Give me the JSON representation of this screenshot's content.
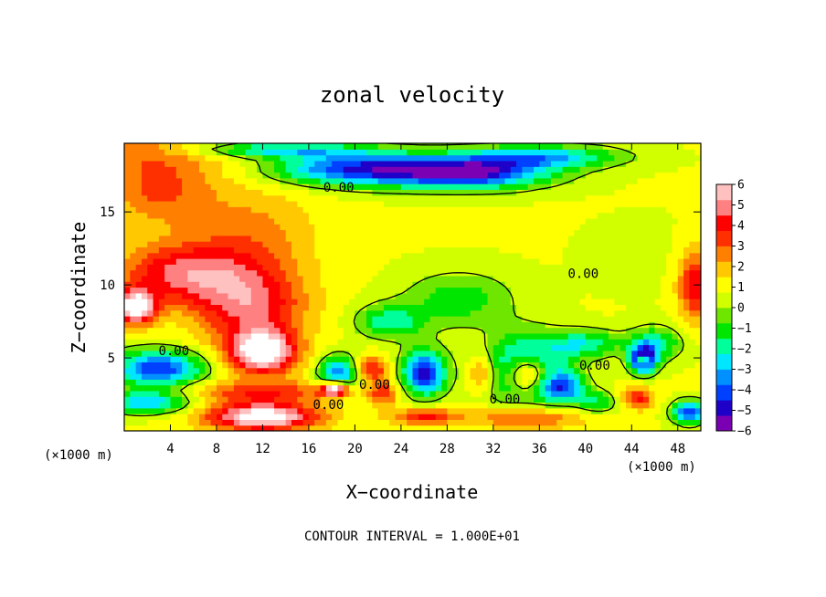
{
  "chart_data": {
    "type": "heatmap",
    "title": "zonal velocity",
    "xlabel": "X−coordinate",
    "ylabel": "Z−coordinate",
    "x_unit_left": "(×1000 m)",
    "x_unit_right": "(×1000 m)",
    "footnote": "CONTOUR INTERVAL = 1.000E+01",
    "xlim": [
      0,
      50
    ],
    "ylim": [
      0,
      19.7
    ],
    "x_ticks": [
      4,
      8,
      12,
      16,
      20,
      24,
      28,
      32,
      36,
      40,
      44,
      48
    ],
    "y_ticks": [
      5,
      10,
      15
    ],
    "colorbar": {
      "range": [
        -6,
        6
      ],
      "ticks": [
        "6",
        "5",
        "4",
        "3",
        "2",
        "1",
        "0",
        "−1",
        "−2",
        "−3",
        "−4",
        "−5",
        "−6"
      ],
      "colors": [
        "#7b00b4",
        "#1e00c8",
        "#0040ff",
        "#0090ff",
        "#00e6ff",
        "#00ff9a",
        "#00e600",
        "#6ee600",
        "#d2ff00",
        "#ffff00",
        "#ffc800",
        "#ff8000",
        "#ff3000",
        "#ff0000",
        "#ff8080",
        "#ffc0c0"
      ]
    },
    "contour_labels": [
      {
        "x": 18.6,
        "z": 16.7,
        "text": "0.00"
      },
      {
        "x": 39.8,
        "z": 10.8,
        "text": "0.00"
      },
      {
        "x": 4.3,
        "z": 5.5,
        "text": "0.00"
      },
      {
        "x": 40.8,
        "z": 4.5,
        "text": "0.00"
      },
      {
        "x": 21.7,
        "z": 3.2,
        "text": "0.00"
      },
      {
        "x": 33.0,
        "z": 2.2,
        "text": "0.00"
      },
      {
        "x": 17.7,
        "z": 1.8,
        "text": "0.00"
      }
    ],
    "field_blobs": [
      {
        "x": 0,
        "z": 19.7,
        "rx": 17,
        "rz": 2.2,
        "v": 2.5
      },
      {
        "x": 20,
        "z": 18.0,
        "rx": 8,
        "rz": 1.2,
        "v": -4.5
      },
      {
        "x": 30,
        "z": 17.7,
        "rx": 7,
        "rz": 1.1,
        "v": -5.0
      },
      {
        "x": 36,
        "z": 18.8,
        "rx": 7,
        "rz": 0.8,
        "v": -3.0
      },
      {
        "x": 13,
        "z": 19.3,
        "rx": 8,
        "rz": 0.6,
        "v": -3.0
      },
      {
        "x": 3,
        "z": 16.5,
        "rx": 5,
        "rz": 2.5,
        "v": 3.0
      },
      {
        "x": 11,
        "z": 13.5,
        "rx": 6,
        "rz": 3.5,
        "v": 2.5
      },
      {
        "x": 5,
        "z": 10.8,
        "rx": 6,
        "rz": 2.2,
        "v": 4.5
      },
      {
        "x": 11,
        "z": 8.5,
        "rx": 5,
        "rz": 2.8,
        "v": 4.5
      },
      {
        "x": 1,
        "z": 8.5,
        "rx": 1.8,
        "rz": 1.2,
        "v": 7.0
      },
      {
        "x": 12,
        "z": 5.4,
        "rx": 3,
        "rz": 1.5,
        "v": 7.0
      },
      {
        "x": 3,
        "z": 4.3,
        "rx": 4,
        "rz": 1.3,
        "v": -4.5
      },
      {
        "x": 2,
        "z": 2.0,
        "rx": 4,
        "rz": 0.8,
        "v": -3.0
      },
      {
        "x": 12,
        "z": 1.0,
        "rx": 5,
        "rz": 1.0,
        "v": 7.0
      },
      {
        "x": 12,
        "z": 2.7,
        "rx": 7,
        "rz": 0.8,
        "v": 3.5
      },
      {
        "x": 18.6,
        "z": 4.0,
        "rx": 1.8,
        "rz": 1.2,
        "v": -3.5
      },
      {
        "x": 18.2,
        "z": 2.9,
        "rx": 1.2,
        "rz": 0.5,
        "v": 7.0
      },
      {
        "x": 21.5,
        "z": 4.3,
        "rx": 1.5,
        "rz": 0.9,
        "v": 4.0
      },
      {
        "x": 22.5,
        "z": 2.6,
        "rx": 1.4,
        "rz": 0.9,
        "v": 3.5
      },
      {
        "x": 26,
        "z": 4.0,
        "rx": 2.0,
        "rz": 1.6,
        "v": -5.0
      },
      {
        "x": 23,
        "z": 7.5,
        "rx": 3,
        "rz": 1.2,
        "v": -2.0
      },
      {
        "x": 26,
        "z": 1.0,
        "rx": 3,
        "rz": 0.6,
        "v": 4.0
      },
      {
        "x": 31,
        "z": 4.0,
        "rx": 1.2,
        "rz": 1.3,
        "v": 3.5
      },
      {
        "x": 35,
        "z": 3.9,
        "rx": 2.0,
        "rz": 1.4,
        "v": 7.0
      },
      {
        "x": 35,
        "z": 4.2,
        "rx": 3.5,
        "rz": 2.3,
        "v": -5.0
      },
      {
        "x": 35,
        "z": 0.9,
        "rx": 5,
        "rz": 0.8,
        "v": 3.5
      },
      {
        "x": 38,
        "z": 3.0,
        "rx": 2.0,
        "rz": 1.0,
        "v": -3.0
      },
      {
        "x": 45,
        "z": 4.9,
        "rx": 1.2,
        "rz": 1.0,
        "v": -5.5
      },
      {
        "x": 45,
        "z": 4.9,
        "rx": 0.4,
        "rz": 0.4,
        "v": 7.0
      },
      {
        "x": 44.5,
        "z": 2.3,
        "rx": 1.5,
        "rz": 0.8,
        "v": 4.0
      },
      {
        "x": 49,
        "z": 1.3,
        "rx": 1.5,
        "rz": 0.8,
        "v": -4.5
      },
      {
        "x": 49.5,
        "z": 10.0,
        "rx": 1.5,
        "rz": 2.5,
        "v": 4.5
      },
      {
        "x": 46,
        "z": 6.0,
        "rx": 2.5,
        "rz": 1.2,
        "v": -2.0
      },
      {
        "x": 40,
        "z": 6.0,
        "rx": 3,
        "rz": 1.0,
        "v": -2.0
      },
      {
        "x": 41,
        "z": 2.0,
        "rx": 2.0,
        "rz": 0.8,
        "v": -1.5
      },
      {
        "x": 29,
        "z": 9.0,
        "rx": 5,
        "rz": 2.0,
        "v": -1.2
      },
      {
        "x": 45,
        "z": 12.0,
        "rx": 6,
        "rz": 3.0,
        "v": 0.6
      },
      {
        "x": 44,
        "z": 18.0,
        "rx": 6,
        "rz": 2.0,
        "v": 0.8
      }
    ]
  }
}
